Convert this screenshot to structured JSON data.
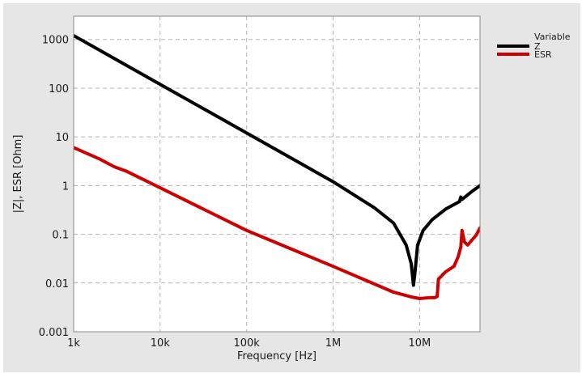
{
  "chart_data": {
    "type": "line",
    "xlabel": "Frequency [Hz]",
    "ylabel": "|Z|, ESR [Ohm]",
    "xscale": "log",
    "yscale": "log",
    "xlim": [
      1000,
      50000000
    ],
    "ylim": [
      0.001,
      3000
    ],
    "x_ticks": [
      1000,
      10000,
      100000,
      1000000,
      10000000
    ],
    "x_tick_labels": [
      "1k",
      "10k",
      "100k",
      "1M",
      "10M"
    ],
    "y_ticks": [
      1000,
      100,
      10,
      1,
      0.1,
      0.01,
      0.001
    ],
    "y_tick_labels": [
      "1000",
      "100",
      "10",
      "1",
      "0.1",
      "0.01",
      "0.001"
    ],
    "grid": true,
    "legend": {
      "title": "Variable",
      "placement": "outside-top-right"
    },
    "series": [
      {
        "name": "Z",
        "color": "#000000",
        "x": [
          1000,
          10000,
          100000,
          1000000,
          3000000,
          5000000,
          7000000,
          8000000,
          8500000,
          8800000,
          9500000,
          11000000,
          14000000,
          20000000,
          29000000,
          30000000,
          31000000,
          40000000,
          50000000
        ],
        "y": [
          1200,
          120,
          12,
          1.2,
          0.35,
          0.17,
          0.06,
          0.025,
          0.009,
          0.015,
          0.06,
          0.12,
          0.2,
          0.33,
          0.47,
          0.58,
          0.52,
          0.75,
          1.0
        ]
      },
      {
        "name": "ESR",
        "color": "#cc0000",
        "x": [
          1000,
          2000,
          3000,
          4000,
          10000,
          100000,
          1000000,
          5000000,
          8000000,
          10000000,
          13000000,
          15000000,
          16000000,
          16500000,
          20000000,
          25000000,
          28000000,
          30000000,
          31000000,
          33000000,
          36000000,
          40000000,
          45000000,
          50000000
        ],
        "y": [
          6.0,
          3.5,
          2.4,
          2.0,
          0.9,
          0.12,
          0.022,
          0.0065,
          0.0052,
          0.0048,
          0.005,
          0.005,
          0.0053,
          0.012,
          0.017,
          0.022,
          0.035,
          0.055,
          0.12,
          0.07,
          0.06,
          0.075,
          0.095,
          0.135
        ]
      }
    ]
  }
}
